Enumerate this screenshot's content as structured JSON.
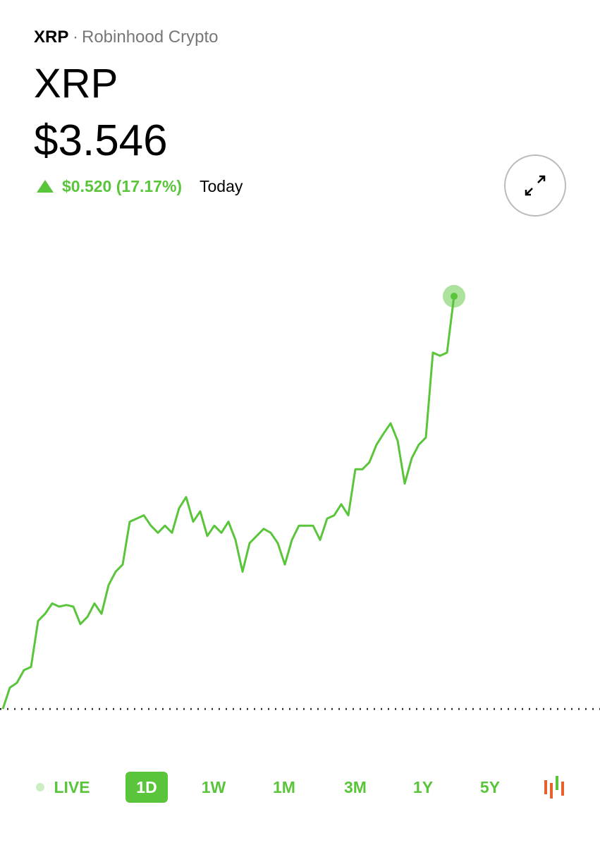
{
  "header": {
    "symbol": "XRP",
    "separator": "·",
    "source": "Robinhood Crypto",
    "title": "XRP",
    "price": "$3.546",
    "change": "$0.520 (17.17%)",
    "change_label": "Today"
  },
  "chart_data": {
    "type": "line",
    "color": "#5ac53b",
    "baseline": 3.026,
    "ylim": [
      2.995,
      3.626
    ],
    "values": [
      3.026,
      3.053,
      3.059,
      3.075,
      3.079,
      3.137,
      3.146,
      3.159,
      3.155,
      3.157,
      3.155,
      3.133,
      3.142,
      3.159,
      3.146,
      3.182,
      3.199,
      3.208,
      3.262,
      3.266,
      3.27,
      3.257,
      3.248,
      3.257,
      3.248,
      3.279,
      3.293,
      3.262,
      3.275,
      3.244,
      3.257,
      3.248,
      3.262,
      3.239,
      3.199,
      3.235,
      3.244,
      3.253,
      3.248,
      3.235,
      3.208,
      3.239,
      3.257,
      3.257,
      3.257,
      3.239,
      3.266,
      3.27,
      3.284,
      3.27,
      3.328,
      3.328,
      3.337,
      3.359,
      3.373,
      3.386,
      3.364,
      3.31,
      3.342,
      3.359,
      3.368,
      3.475,
      3.471,
      3.475,
      3.546
    ]
  },
  "ranges": {
    "items": [
      "LIVE",
      "1D",
      "1W",
      "1M",
      "3M",
      "1Y",
      "5Y"
    ],
    "selected": 1
  }
}
